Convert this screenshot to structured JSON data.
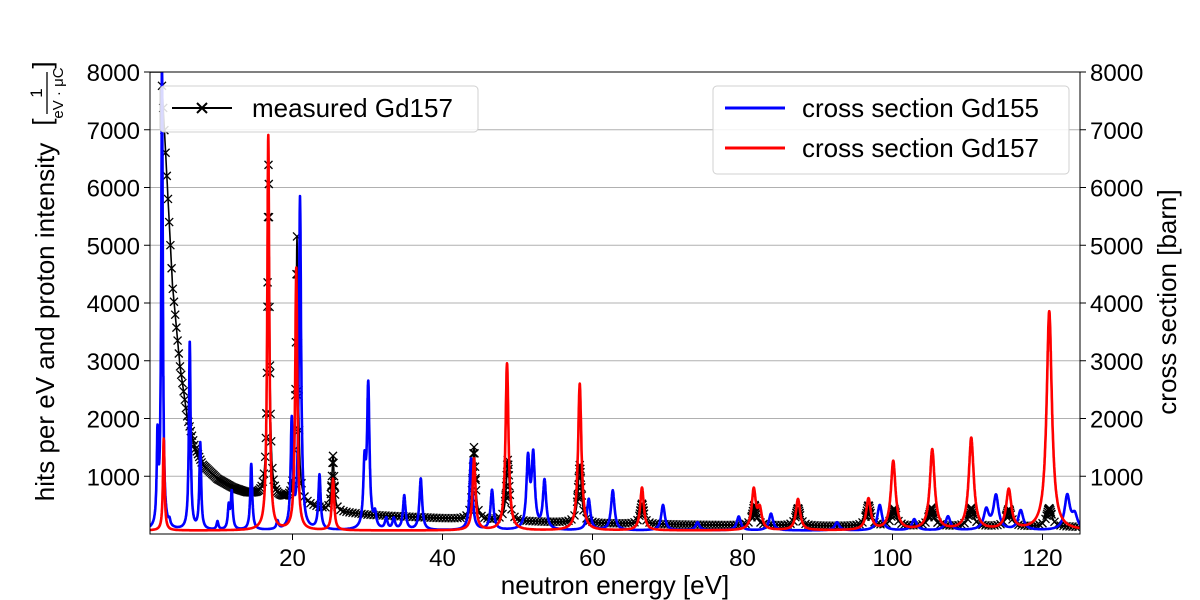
{
  "chart_data": {
    "type": "line",
    "xlabel": "neutron energy [eV]",
    "ylabel_left": "hits per eV and proton intensity",
    "ylabel_left_unit_numerator": "1",
    "ylabel_left_unit_denominator": "eV · μC",
    "ylabel_right": "cross section [barn]",
    "xlim": [
      1,
      125
    ],
    "ylim_left": [
      0,
      8000
    ],
    "ylim_right": [
      0,
      8000
    ],
    "xticks": [
      "20",
      "40",
      "60",
      "80",
      "100",
      "120"
    ],
    "yticks_left": [
      "1000",
      "2000",
      "3000",
      "4000",
      "5000",
      "6000",
      "7000",
      "8000"
    ],
    "yticks_right": [
      "1000",
      "2000",
      "3000",
      "4000",
      "5000",
      "6000",
      "7000",
      "8000"
    ],
    "grid": "horizontal",
    "legends": [
      {
        "placement": "top-left",
        "entries": [
          {
            "label": "measured Gd157",
            "color": "#000000",
            "marker": "x"
          }
        ]
      },
      {
        "placement": "top-right",
        "entries": [
          {
            "label": "cross section Gd155",
            "color": "#0000ff"
          },
          {
            "label": "cross section Gd157",
            "color": "#ff0000"
          }
        ]
      }
    ],
    "series": [
      {
        "name": "measured Gd157",
        "axis": "left",
        "color": "#000000",
        "marker": "x",
        "baseline": [
          [
            2.5,
            8000
          ],
          [
            3,
            6800
          ],
          [
            4,
            4300
          ],
          [
            5,
            2900
          ],
          [
            6,
            2000
          ],
          [
            7,
            1500
          ],
          [
            8,
            1200
          ],
          [
            10,
            950
          ],
          [
            12,
            800
          ],
          [
            14,
            700
          ],
          [
            16,
            650
          ],
          [
            20,
            560
          ],
          [
            25,
            400
          ],
          [
            30,
            330
          ],
          [
            40,
            270
          ],
          [
            50,
            220
          ],
          [
            60,
            185
          ],
          [
            70,
            165
          ],
          [
            80,
            150
          ],
          [
            90,
            140
          ],
          [
            100,
            135
          ],
          [
            110,
            130
          ],
          [
            120,
            125
          ],
          [
            125,
            120
          ]
        ],
        "peaks": [
          {
            "x": 16.8,
            "y": 5750
          },
          {
            "x": 20.6,
            "y": 4600
          },
          {
            "x": 25.4,
            "y": 950
          },
          {
            "x": 44.2,
            "y": 1250
          },
          {
            "x": 48.7,
            "y": 1050
          },
          {
            "x": 58.3,
            "y": 1000
          },
          {
            "x": 66.6,
            "y": 350
          },
          {
            "x": 81.6,
            "y": 350
          },
          {
            "x": 87.4,
            "y": 300
          },
          {
            "x": 96.8,
            "y": 350
          },
          {
            "x": 100.2,
            "y": 300
          },
          {
            "x": 105.2,
            "y": 320
          },
          {
            "x": 110.5,
            "y": 320
          },
          {
            "x": 115.5,
            "y": 300
          },
          {
            "x": 120.9,
            "y": 320
          }
        ]
      },
      {
        "name": "cross section Gd155",
        "axis": "right",
        "color": "#0000ff",
        "baseline": 60,
        "peaks": [
          {
            "x": 2.0,
            "y": 1550
          },
          {
            "x": 2.6,
            "y": 8000
          },
          {
            "x": 3.6,
            "y": 150
          },
          {
            "x": 6.3,
            "y": 3300
          },
          {
            "x": 7.7,
            "y": 1550
          },
          {
            "x": 10.0,
            "y": 200
          },
          {
            "x": 11.5,
            "y": 450
          },
          {
            "x": 11.9,
            "y": 700
          },
          {
            "x": 14.5,
            "y": 1200
          },
          {
            "x": 18.0,
            "y": 200
          },
          {
            "x": 19.9,
            "y": 1900
          },
          {
            "x": 21.0,
            "y": 5800
          },
          {
            "x": 23.6,
            "y": 1000
          },
          {
            "x": 29.6,
            "y": 1100
          },
          {
            "x": 30.1,
            "y": 2500
          },
          {
            "x": 31.0,
            "y": 300
          },
          {
            "x": 32.5,
            "y": 250
          },
          {
            "x": 33.5,
            "y": 250
          },
          {
            "x": 34.9,
            "y": 650
          },
          {
            "x": 37.1,
            "y": 950
          },
          {
            "x": 43.8,
            "y": 1300
          },
          {
            "x": 46.6,
            "y": 750
          },
          {
            "x": 51.4,
            "y": 1250
          },
          {
            "x": 52.1,
            "y": 1300
          },
          {
            "x": 53.6,
            "y": 900
          },
          {
            "x": 59.5,
            "y": 600
          },
          {
            "x": 62.7,
            "y": 750
          },
          {
            "x": 69.4,
            "y": 500
          },
          {
            "x": 74.0,
            "y": 200
          },
          {
            "x": 79.5,
            "y": 300
          },
          {
            "x": 83.8,
            "y": 350
          },
          {
            "x": 92.6,
            "y": 200
          },
          {
            "x": 98.3,
            "y": 500
          },
          {
            "x": 102.9,
            "y": 250
          },
          {
            "x": 107.4,
            "y": 300
          },
          {
            "x": 112.5,
            "y": 400
          },
          {
            "x": 113.8,
            "y": 650
          },
          {
            "x": 117.1,
            "y": 400
          },
          {
            "x": 123.3,
            "y": 650
          },
          {
            "x": 124.3,
            "y": 300
          }
        ]
      },
      {
        "name": "cross section Gd157",
        "axis": "right",
        "color": "#ff0000",
        "baseline": 60,
        "peaks": [
          {
            "x": 2.83,
            "y": 1650
          },
          {
            "x": 16.77,
            "y": 6900
          },
          {
            "x": 20.5,
            "y": 4600
          },
          {
            "x": 25.4,
            "y": 950
          },
          {
            "x": 44.2,
            "y": 1300
          },
          {
            "x": 48.6,
            "y": 2950
          },
          {
            "x": 58.3,
            "y": 2600
          },
          {
            "x": 66.6,
            "y": 800
          },
          {
            "x": 81.5,
            "y": 750
          },
          {
            "x": 82.3,
            "y": 400
          },
          {
            "x": 87.4,
            "y": 600
          },
          {
            "x": 96.8,
            "y": 600
          },
          {
            "x": 100.1,
            "y": 1250
          },
          {
            "x": 105.3,
            "y": 1450
          },
          {
            "x": 110.5,
            "y": 1650
          },
          {
            "x": 115.5,
            "y": 750
          },
          {
            "x": 120.9,
            "y": 3850
          }
        ]
      }
    ]
  }
}
